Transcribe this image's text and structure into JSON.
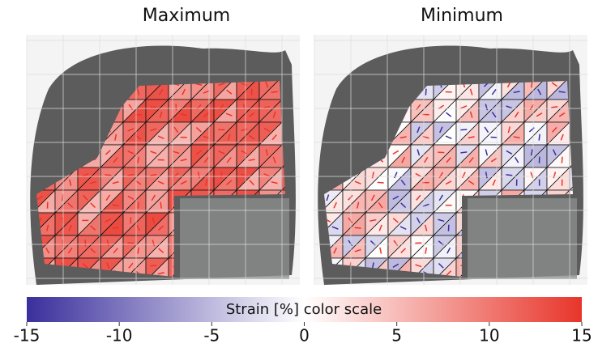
{
  "panels": [
    {
      "title": "Maximum"
    },
    {
      "title": "Minimum"
    }
  ],
  "colorbar": {
    "label": "Strain [%] color scale",
    "lim": [
      -15,
      15
    ],
    "ticks": [
      -15,
      -10,
      -5,
      0,
      5,
      10,
      15
    ],
    "colors": [
      "#3a2f9c",
      "#ffffff",
      "#e8352a"
    ]
  }
}
